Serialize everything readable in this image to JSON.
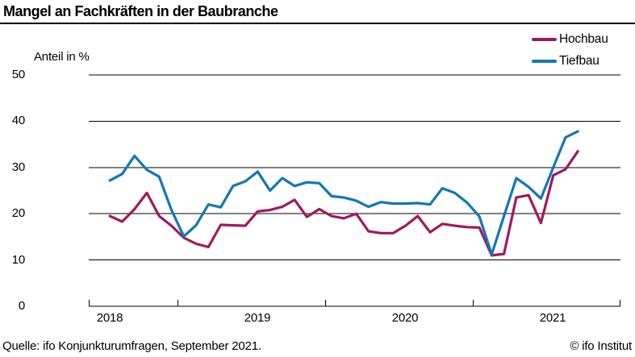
{
  "header": {
    "title": "Mangel an Fachkräften in der Baubranche"
  },
  "legend": {
    "items": [
      {
        "label": "Hochbau"
      },
      {
        "label": "Tiefbau"
      }
    ]
  },
  "axes": {
    "y": {
      "unit_label": "Anteil in %",
      "ticks": [
        "0",
        "10",
        "20",
        "30",
        "40",
        "50"
      ]
    },
    "x": {
      "ticks": [
        "2018",
        "2019",
        "2020",
        "2021"
      ]
    }
  },
  "footer": {
    "source": "Quelle: ifo Konjunkturumfragen, September 2021.",
    "copyright": "© ifo Institut"
  },
  "chart_data": {
    "type": "line",
    "title": "Mangel an Fachkräften in der Baubranche",
    "ylabel": "Anteil in %",
    "ylim": [
      0,
      50
    ],
    "ytick_step": 10,
    "grid": "horizontal",
    "legend_position": "top-right",
    "x": [
      "Jul 2018",
      "Aug 2018",
      "Sep 2018",
      "Okt 2018",
      "Nov 2018",
      "Dez 2018",
      "Jan 2019",
      "Feb 2019",
      "Mär 2019",
      "Apr 2019",
      "Mai 2019",
      "Jun 2019",
      "Jul 2019",
      "Aug 2019",
      "Sep 2019",
      "Okt 2019",
      "Nov 2019",
      "Dez 2019",
      "Jan 2020",
      "Feb 2020",
      "Mär 2020",
      "Apr 2020",
      "Mai 2020",
      "Jun 2020",
      "Jul 2020",
      "Aug 2020",
      "Sep 2020",
      "Okt 2020",
      "Nov 2020",
      "Dez 2020",
      "Jan 2021",
      "Feb 2021",
      "Mär 2021",
      "Apr 2021",
      "Mai 2021",
      "Jun 2021",
      "Jul 2021",
      "Aug 2021",
      "Sep 2021"
    ],
    "xticklabels": [
      "2018",
      "2019",
      "2020",
      "2021"
    ],
    "series": [
      {
        "name": "Hochbau",
        "color": "#A0195F",
        "values": [
          19.5,
          18.3,
          21.0,
          24.5,
          19.5,
          17.4,
          14.8,
          13.5,
          12.8,
          17.6,
          17.5,
          17.4,
          20.5,
          20.8,
          21.5,
          23.0,
          19.3,
          21.0,
          19.5,
          19.0,
          20.0,
          16.2,
          15.8,
          15.8,
          17.4,
          19.5,
          16.0,
          17.8,
          17.4,
          17.1,
          17.0,
          11.0,
          11.3,
          23.5,
          24.0,
          18.0,
          28.3,
          29.6,
          33.5
        ]
      },
      {
        "name": "Tiefbau",
        "color": "#1277B5",
        "values": [
          27.2,
          28.6,
          32.5,
          29.5,
          28.0,
          20.8,
          15.1,
          17.5,
          22.0,
          21.4,
          26.0,
          27.0,
          29.1,
          25.0,
          27.7,
          26.0,
          26.8,
          26.6,
          23.8,
          23.5,
          22.8,
          21.5,
          22.5,
          22.2,
          22.2,
          22.3,
          22.0,
          25.5,
          24.5,
          22.4,
          19.4,
          11.2,
          19.5,
          27.7,
          25.8,
          23.3,
          30.0,
          36.5,
          37.8
        ]
      }
    ]
  }
}
